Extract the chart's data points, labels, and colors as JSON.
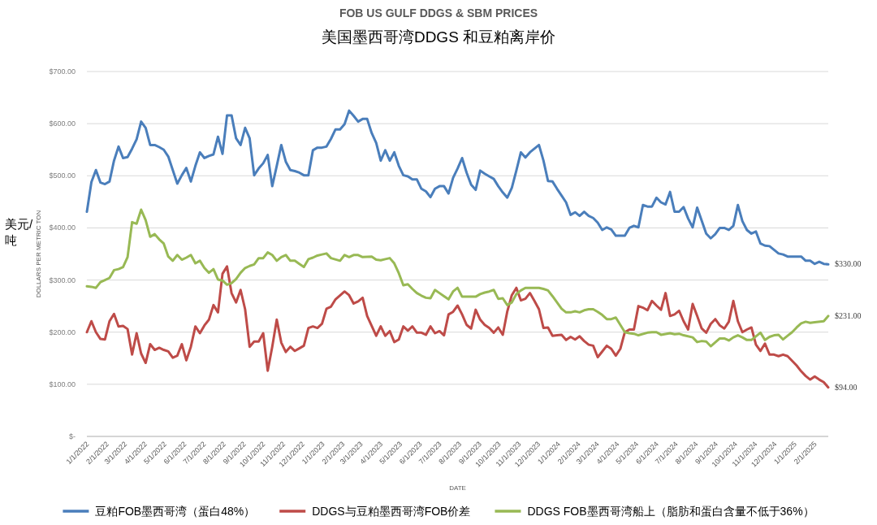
{
  "chart_data": {
    "type": "line",
    "title": "FOB US GULF DDGS & SBM PRICES",
    "subtitle": "美国墨西哥湾DDGS 和豆粕离岸价",
    "xlabel": "DATE",
    "ylabel": "DOLLARS PER METRIC TON",
    "annotations": [
      "美元/吨",
      {
        "text": "$330.00",
        "x": "2025-02-22",
        "y": 330
      },
      {
        "text": "$231.00",
        "x": "2025-02-22",
        "y": 231
      },
      {
        "text": "$94.00",
        "x": "2025-02-22",
        "y": 94
      }
    ],
    "xlim": [
      "2022-01-01",
      "2025-02-22"
    ],
    "xticks": [
      {
        "value": "2022-01-01",
        "label": "1/1/2022"
      },
      {
        "value": "2022-02-01",
        "label": "2/1/2022"
      },
      {
        "value": "2022-03-01",
        "label": "3/1/2022"
      },
      {
        "value": "2022-04-01",
        "label": "4/1/2022"
      },
      {
        "value": "2022-05-01",
        "label": "5/1/2022"
      },
      {
        "value": "2022-06-01",
        "label": "6/1/2022"
      },
      {
        "value": "2022-07-01",
        "label": "7/1/2022"
      },
      {
        "value": "2022-08-01",
        "label": "8/1/2022"
      },
      {
        "value": "2022-09-01",
        "label": "9/1/2022"
      },
      {
        "value": "2022-10-01",
        "label": "10/1/2022"
      },
      {
        "value": "2022-11-01",
        "label": "11/1/2022"
      },
      {
        "value": "2022-12-01",
        "label": "12/1/2022"
      },
      {
        "value": "2023-01-01",
        "label": "1/1/2023"
      },
      {
        "value": "2023-02-01",
        "label": "2/1/2023"
      },
      {
        "value": "2023-03-01",
        "label": "3/1/2023"
      },
      {
        "value": "2023-04-01",
        "label": "4/1/2023"
      },
      {
        "value": "2023-05-01",
        "label": "5/1/2023"
      },
      {
        "value": "2023-06-01",
        "label": "6/1/2023"
      },
      {
        "value": "2023-07-01",
        "label": "7/1/2023"
      },
      {
        "value": "2023-08-01",
        "label": "8/1/2023"
      },
      {
        "value": "2023-09-01",
        "label": "9/1/2023"
      },
      {
        "value": "2023-10-01",
        "label": "10/1/2023"
      },
      {
        "value": "2023-11-01",
        "label": "11/1/2023"
      },
      {
        "value": "2023-12-01",
        "label": "12/1/2023"
      },
      {
        "value": "2024-01-01",
        "label": "1/1/2024"
      },
      {
        "value": "2024-02-01",
        "label": "2/1/2024"
      },
      {
        "value": "2024-03-01",
        "label": "3/1/2024"
      },
      {
        "value": "2024-04-01",
        "label": "4/1/2024"
      },
      {
        "value": "2024-05-01",
        "label": "5/1/2024"
      },
      {
        "value": "2024-06-01",
        "label": "6/1/2024"
      },
      {
        "value": "2024-07-01",
        "label": "7/1/2024"
      },
      {
        "value": "2024-08-01",
        "label": "8/1/2024"
      },
      {
        "value": "2024-09-01",
        "label": "9/1/2024"
      },
      {
        "value": "2024-10-01",
        "label": "10/1/2024"
      },
      {
        "value": "2024-11-01",
        "label": "11/1/2024"
      },
      {
        "value": "2024-12-01",
        "label": "12/1/2024"
      },
      {
        "value": "2025-01-01",
        "label": "1/1/2025"
      },
      {
        "value": "2025-02-01",
        "label": "2/1/2025"
      }
    ],
    "ylim": [
      0,
      700
    ],
    "yticks": [
      {
        "value": 0,
        "label": "$-"
      },
      {
        "value": 100,
        "label": "$100.00"
      },
      {
        "value": 200,
        "label": "$200.00"
      },
      {
        "value": 300,
        "label": "$300.00"
      },
      {
        "value": 400,
        "label": "$400.00"
      },
      {
        "value": 500,
        "label": "$500.00"
      },
      {
        "value": 600,
        "label": "$600.00"
      },
      {
        "value": 700,
        "label": "$700.00"
      }
    ],
    "grid": "y",
    "legend": "bottom",
    "series": [
      {
        "name": "豆粕FOB墨西哥湾（蛋白48%）",
        "color": "#4a7ebb",
        "x": [
          "2022-01-01",
          "2022-01-08",
          "2022-01-15",
          "2022-01-22",
          "2022-01-29",
          "2022-02-05",
          "2022-02-12",
          "2022-02-19",
          "2022-02-26",
          "2022-03-05",
          "2022-03-12",
          "2022-03-19",
          "2022-03-26",
          "2022-04-02",
          "2022-04-09",
          "2022-04-16",
          "2022-04-23",
          "2022-04-30",
          "2022-05-07",
          "2022-05-14",
          "2022-05-21",
          "2022-05-28",
          "2022-06-04",
          "2022-06-11",
          "2022-06-18",
          "2022-06-25",
          "2022-07-02",
          "2022-07-09",
          "2022-07-16",
          "2022-07-23",
          "2022-07-30",
          "2022-08-06",
          "2022-08-13",
          "2022-08-20",
          "2022-08-27",
          "2022-09-03",
          "2022-09-10",
          "2022-09-17",
          "2022-09-24",
          "2022-10-01",
          "2022-10-08",
          "2022-10-15",
          "2022-10-22",
          "2022-10-29",
          "2022-11-05",
          "2022-11-12",
          "2022-11-19",
          "2022-11-26",
          "2022-12-03",
          "2022-12-10",
          "2022-12-17",
          "2022-12-24",
          "2022-12-31",
          "2023-01-07",
          "2023-01-14",
          "2023-01-21",
          "2023-01-28",
          "2023-02-04",
          "2023-02-11",
          "2023-02-18",
          "2023-02-25",
          "2023-03-04",
          "2023-03-11",
          "2023-03-18",
          "2023-03-25",
          "2023-04-01",
          "2023-04-08",
          "2023-04-15",
          "2023-04-22",
          "2023-04-29",
          "2023-05-06",
          "2023-05-13",
          "2023-05-20",
          "2023-05-27",
          "2023-06-03",
          "2023-06-10",
          "2023-06-17",
          "2023-06-24",
          "2023-07-01",
          "2023-07-08",
          "2023-07-15",
          "2023-07-22",
          "2023-07-29",
          "2023-08-05",
          "2023-08-12",
          "2023-08-19",
          "2023-08-26",
          "2023-09-02",
          "2023-09-09",
          "2023-09-16",
          "2023-09-23",
          "2023-09-30",
          "2023-10-07",
          "2023-10-14",
          "2023-10-21",
          "2023-10-28",
          "2023-11-04",
          "2023-11-11",
          "2023-11-18",
          "2023-11-25",
          "2023-12-02",
          "2023-12-09",
          "2023-12-16",
          "2023-12-23",
          "2023-12-30",
          "2024-01-06",
          "2024-01-13",
          "2024-01-20",
          "2024-01-27",
          "2024-02-03",
          "2024-02-10",
          "2024-02-17",
          "2024-02-24",
          "2024-03-02",
          "2024-03-09",
          "2024-03-16",
          "2024-03-23",
          "2024-03-30",
          "2024-04-13",
          "2024-04-20",
          "2024-04-27",
          "2024-05-04",
          "2024-05-11",
          "2024-05-18",
          "2024-05-25",
          "2024-06-01",
          "2024-06-08",
          "2024-06-15",
          "2024-06-22",
          "2024-06-29",
          "2024-07-06",
          "2024-07-13",
          "2024-07-20",
          "2024-07-27",
          "2024-08-03",
          "2024-08-10",
          "2024-08-17",
          "2024-08-24",
          "2024-08-31",
          "2024-09-07",
          "2024-09-14",
          "2024-09-21",
          "2024-09-28",
          "2024-10-05",
          "2024-10-12",
          "2024-10-19",
          "2024-10-26",
          "2024-11-02",
          "2024-11-09",
          "2024-11-16",
          "2024-11-23",
          "2024-11-30",
          "2024-12-07",
          "2024-12-14",
          "2024-12-21",
          "2024-12-28",
          "2025-01-04",
          "2025-01-11",
          "2025-01-18",
          "2025-01-25",
          "2025-02-01",
          "2025-02-08",
          "2025-02-15",
          "2025-02-22"
        ],
        "values": [
          431,
          488,
          511,
          487,
          484,
          489,
          529,
          556,
          534,
          536,
          552,
          570,
          604,
          592,
          559,
          559,
          555,
          550,
          537,
          511,
          485,
          501,
          515,
          489,
          519,
          545,
          534,
          538,
          541,
          575,
          542,
          616,
          616,
          572,
          559,
          592,
          572,
          501,
          514,
          524,
          540,
          480,
          519,
          559,
          527,
          511,
          509,
          506,
          501,
          501,
          549,
          554,
          554,
          556,
          571,
          589,
          589,
          599,
          625,
          615,
          604,
          609,
          609,
          582,
          563,
          529,
          549,
          529,
          545,
          519,
          501,
          499,
          493,
          493,
          475,
          470,
          459,
          475,
          480,
          480,
          466,
          496,
          514,
          534,
          506,
          483,
          473,
          510,
          504,
          499,
          494,
          480,
          468,
          458,
          477,
          510,
          545,
          535,
          545,
          552,
          559,
          529,
          490,
          489,
          475,
          462,
          449,
          425,
          430,
          423,
          431,
          423,
          419,
          410,
          396,
          401,
          397,
          385,
          385,
          400,
          404,
          401,
          444,
          441,
          441,
          458,
          449,
          445,
          469,
          431,
          431,
          440,
          418,
          401,
          439,
          414,
          389,
          380,
          388,
          400,
          400,
          396,
          404,
          444,
          413,
          396,
          389,
          393,
          370,
          366,
          365,
          358,
          351,
          349,
          345,
          345,
          345,
          345,
          337,
          337,
          331,
          335,
          331,
          330
        ]
      },
      {
        "name": "DDGS与豆粕墨西哥湾FOB价差",
        "color": "#be4b48",
        "x": [
          "2022-01-01",
          "2022-01-08",
          "2022-01-15",
          "2022-01-22",
          "2022-01-29",
          "2022-02-05",
          "2022-02-12",
          "2022-02-19",
          "2022-02-26",
          "2022-03-05",
          "2022-03-12",
          "2022-03-19",
          "2022-03-26",
          "2022-04-02",
          "2022-04-09",
          "2022-04-16",
          "2022-04-23",
          "2022-04-30",
          "2022-05-07",
          "2022-05-14",
          "2022-05-21",
          "2022-05-28",
          "2022-06-04",
          "2022-06-11",
          "2022-06-18",
          "2022-06-25",
          "2022-07-02",
          "2022-07-09",
          "2022-07-16",
          "2022-07-23",
          "2022-07-30",
          "2022-08-06",
          "2022-08-13",
          "2022-08-20",
          "2022-08-27",
          "2022-09-03",
          "2022-09-10",
          "2022-09-17",
          "2022-09-24",
          "2022-10-01",
          "2022-10-08",
          "2022-10-15",
          "2022-10-22",
          "2022-10-29",
          "2022-11-05",
          "2022-11-12",
          "2022-11-19",
          "2022-11-26",
          "2022-12-03",
          "2022-12-10",
          "2022-12-17",
          "2022-12-24",
          "2022-12-31",
          "2023-01-07",
          "2023-01-14",
          "2023-01-21",
          "2023-02-04",
          "2023-02-11",
          "2023-02-18",
          "2023-02-25",
          "2023-03-04",
          "2023-03-11",
          "2023-03-25",
          "2023-04-01",
          "2023-04-08",
          "2023-04-15",
          "2023-04-22",
          "2023-04-29",
          "2023-05-06",
          "2023-05-13",
          "2023-05-20",
          "2023-05-27",
          "2023-06-03",
          "2023-06-10",
          "2023-06-17",
          "2023-06-24",
          "2023-07-01",
          "2023-07-08",
          "2023-07-15",
          "2023-07-22",
          "2023-07-29",
          "2023-08-05",
          "2023-08-12",
          "2023-08-19",
          "2023-08-26",
          "2023-09-02",
          "2023-09-09",
          "2023-09-16",
          "2023-09-23",
          "2023-09-30",
          "2023-10-07",
          "2023-10-14",
          "2023-10-21",
          "2023-10-28",
          "2023-11-04",
          "2023-11-11",
          "2023-11-18",
          "2023-11-25",
          "2023-12-02",
          "2023-12-09",
          "2023-12-16",
          "2023-12-23",
          "2023-12-30",
          "2024-01-06",
          "2024-01-13",
          "2024-01-20",
          "2024-01-27",
          "2024-02-03",
          "2024-02-10",
          "2024-02-17",
          "2024-02-24",
          "2024-03-02",
          "2024-03-09",
          "2024-03-16",
          "2024-03-23",
          "2024-03-30",
          "2024-04-06",
          "2024-04-13",
          "2024-04-20",
          "2024-04-27",
          "2024-05-04",
          "2024-05-11",
          "2024-05-18",
          "2024-05-25",
          "2024-06-01",
          "2024-06-08",
          "2024-06-15",
          "2024-06-22",
          "2024-06-29",
          "2024-07-06",
          "2024-07-13",
          "2024-07-20",
          "2024-07-27",
          "2024-08-03",
          "2024-08-10",
          "2024-08-17",
          "2024-08-24",
          "2024-08-31",
          "2024-09-07",
          "2024-09-14",
          "2024-09-21",
          "2024-09-28",
          "2024-10-05",
          "2024-10-12",
          "2024-10-19",
          "2024-10-26",
          "2024-11-02",
          "2024-11-09",
          "2024-11-16",
          "2024-11-23",
          "2024-11-30",
          "2024-12-07",
          "2024-12-14",
          "2024-12-21",
          "2024-12-28",
          "2025-01-04",
          "2025-01-11",
          "2025-01-18",
          "2025-01-25",
          "2025-02-01",
          "2025-02-08",
          "2025-02-15",
          "2025-02-22"
        ],
        "values": [
          200,
          221,
          200,
          187,
          186,
          221,
          235,
          211,
          212,
          206,
          157,
          198,
          159,
          141,
          177,
          166,
          170,
          166,
          163,
          151,
          155,
          177,
          146,
          172,
          211,
          198,
          213,
          224,
          252,
          238,
          312,
          326,
          275,
          257,
          281,
          244,
          172,
          182,
          182,
          198,
          126,
          172,
          224,
          180,
          162,
          172,
          164,
          169,
          174,
          208,
          211,
          208,
          216,
          245,
          249,
          263,
          278,
          271,
          255,
          259,
          266,
          231,
          193,
          211,
          193,
          202,
          181,
          186,
          211,
          203,
          211,
          199,
          199,
          195,
          211,
          198,
          202,
          194,
          234,
          239,
          251,
          234,
          214,
          207,
          243,
          224,
          214,
          208,
          199,
          209,
          195,
          240,
          271,
          285,
          261,
          264,
          275,
          260,
          244,
          208,
          209,
          193,
          194,
          195,
          185,
          191,
          186,
          192,
          183,
          176,
          174,
          152,
          163,
          174,
          168,
          155,
          168,
          200,
          205,
          205,
          250,
          247,
          242,
          260,
          251,
          243,
          275,
          231,
          234,
          241,
          221,
          205,
          254,
          231,
          207,
          199,
          216,
          225,
          213,
          207,
          220,
          260,
          221,
          200,
          205,
          209,
          176,
          164,
          178,
          157,
          157,
          154,
          157,
          154,
          145,
          136,
          125,
          116,
          109,
          115,
          109,
          104,
          94
        ]
      },
      {
        "name": "DDGS FOB墨西哥湾船上（脂肪和蛋白含量不低于36%）",
        "color": "#98b954",
        "x": [
          "2022-01-01",
          "2022-01-08",
          "2022-01-15",
          "2022-01-22",
          "2022-01-29",
          "2022-02-05",
          "2022-02-12",
          "2022-02-19",
          "2022-02-26",
          "2022-03-05",
          "2022-03-12",
          "2022-03-19",
          "2022-03-26",
          "2022-04-02",
          "2022-04-09",
          "2022-04-16",
          "2022-04-23",
          "2022-04-30",
          "2022-05-07",
          "2022-05-14",
          "2022-05-21",
          "2022-05-28",
          "2022-06-04",
          "2022-06-11",
          "2022-06-18",
          "2022-06-25",
          "2022-07-02",
          "2022-07-09",
          "2022-07-16",
          "2022-07-23",
          "2022-07-30",
          "2022-08-06",
          "2022-08-13",
          "2022-08-20",
          "2022-08-27",
          "2022-09-03",
          "2022-09-10",
          "2022-09-17",
          "2022-09-24",
          "2022-10-01",
          "2022-10-08",
          "2022-10-15",
          "2022-10-22",
          "2022-10-29",
          "2022-11-05",
          "2022-11-12",
          "2022-11-19",
          "2022-11-26",
          "2022-12-03",
          "2022-12-10",
          "2022-12-17",
          "2022-12-24",
          "2022-12-31",
          "2023-01-07",
          "2023-01-14",
          "2023-01-28",
          "2023-02-04",
          "2023-02-11",
          "2023-02-18",
          "2023-02-25",
          "2023-03-04",
          "2023-03-18",
          "2023-03-25",
          "2023-04-01",
          "2023-04-08",
          "2023-04-15",
          "2023-04-22",
          "2023-04-29",
          "2023-05-06",
          "2023-05-13",
          "2023-05-20",
          "2023-05-27",
          "2023-06-03",
          "2023-06-10",
          "2023-06-17",
          "2023-06-24",
          "2023-07-01",
          "2023-07-08",
          "2023-07-15",
          "2023-07-22",
          "2023-07-29",
          "2023-08-05",
          "2023-08-12",
          "2023-08-26",
          "2023-09-02",
          "2023-09-09",
          "2023-09-16",
          "2023-09-23",
          "2023-09-30",
          "2023-10-07",
          "2023-10-14",
          "2023-10-21",
          "2023-10-28",
          "2023-11-04",
          "2023-11-11",
          "2023-11-18",
          "2023-12-02",
          "2023-12-09",
          "2023-12-16",
          "2023-12-23",
          "2023-12-30",
          "2024-01-06",
          "2024-01-13",
          "2024-01-20",
          "2024-01-27",
          "2024-02-03",
          "2024-02-10",
          "2024-02-17",
          "2024-02-24",
          "2024-03-02",
          "2024-03-09",
          "2024-03-16",
          "2024-03-23",
          "2024-03-30",
          "2024-04-06",
          "2024-04-13",
          "2024-04-20",
          "2024-04-27",
          "2024-05-04",
          "2024-05-18",
          "2024-05-25",
          "2024-06-01",
          "2024-06-08",
          "2024-06-22",
          "2024-06-29",
          "2024-07-06",
          "2024-07-13",
          "2024-07-27",
          "2024-08-03",
          "2024-08-10",
          "2024-08-17",
          "2024-08-24",
          "2024-09-07",
          "2024-09-14",
          "2024-09-21",
          "2024-09-28",
          "2024-10-05",
          "2024-10-12",
          "2024-10-19",
          "2024-10-26",
          "2024-11-09",
          "2024-11-16",
          "2024-11-23",
          "2024-11-30",
          "2024-12-07",
          "2024-12-14",
          "2024-12-21",
          "2024-12-28",
          "2025-01-04",
          "2025-01-11",
          "2025-01-18",
          "2025-01-25",
          "2025-02-01",
          "2025-02-15",
          "2025-02-22"
        ],
        "values": [
          288,
          287,
          285,
          296,
          300,
          304,
          319,
          321,
          325,
          344,
          411,
          408,
          435,
          415,
          383,
          388,
          378,
          370,
          345,
          337,
          348,
          339,
          343,
          348,
          332,
          337,
          323,
          314,
          321,
          301,
          299,
          291,
          294,
          302,
          314,
          323,
          327,
          330,
          342,
          342,
          353,
          348,
          337,
          344,
          348,
          337,
          337,
          331,
          325,
          340,
          343,
          347,
          349,
          351,
          342,
          337,
          348,
          344,
          348,
          348,
          344,
          345,
          339,
          338,
          340,
          342,
          332,
          313,
          290,
          292,
          283,
          275,
          270,
          266,
          265,
          281,
          275,
          269,
          263,
          278,
          285,
          268,
          268,
          268,
          273,
          276,
          278,
          281,
          264,
          265,
          252,
          257,
          273,
          280,
          285,
          285,
          285,
          283,
          280,
          269,
          257,
          245,
          238,
          238,
          240,
          238,
          242,
          244,
          244,
          239,
          233,
          225,
          225,
          228,
          214,
          200,
          198,
          197,
          194,
          199,
          200,
          200,
          195,
          198,
          196,
          197,
          194,
          190,
          181,
          183,
          182,
          173,
          188,
          188,
          184,
          190,
          194,
          190,
          185,
          185,
          199,
          185,
          191,
          194,
          195,
          186,
          193,
          200,
          209,
          217,
          220,
          218,
          219,
          221,
          231
        ]
      }
    ]
  }
}
